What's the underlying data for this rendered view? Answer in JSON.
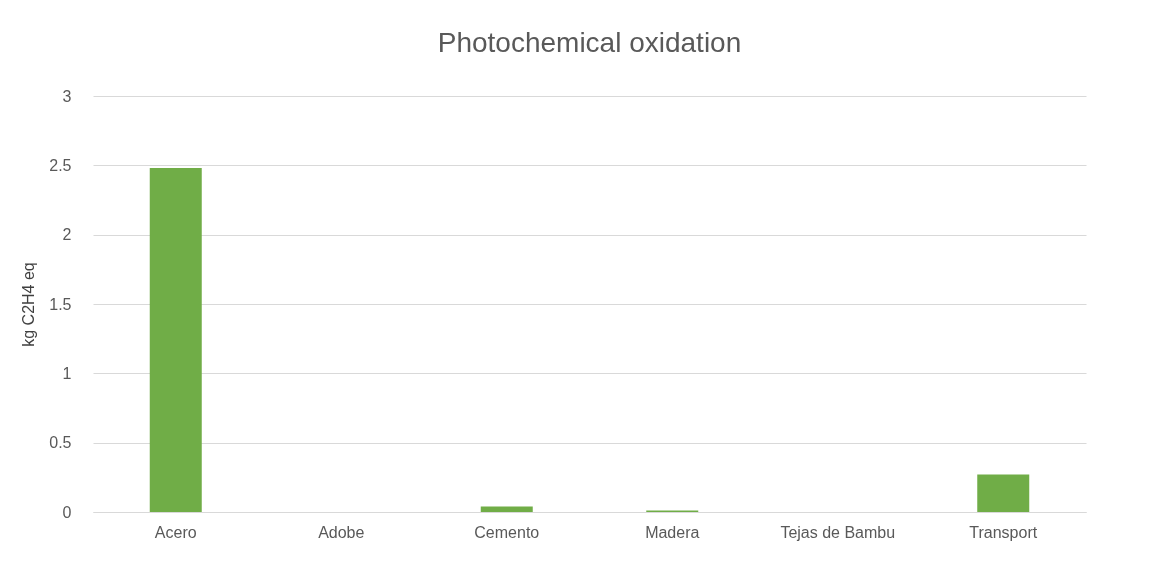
{
  "chart_data": {
    "type": "bar",
    "title": "Photochemical oxidation",
    "ylabel": "kg C2H4 eq",
    "categories": [
      "Acero",
      "Adobe",
      "Cemento",
      "Madera",
      "Tejas de Bambu",
      "Transport"
    ],
    "values": [
      2.48,
      0,
      0.04,
      0.01,
      0,
      0.27
    ],
    "color": "#70ad47",
    "ylim": [
      0,
      3
    ],
    "yticks": [
      0,
      0.5,
      1,
      1.5,
      2,
      2.5,
      3
    ],
    "grid": "y"
  }
}
